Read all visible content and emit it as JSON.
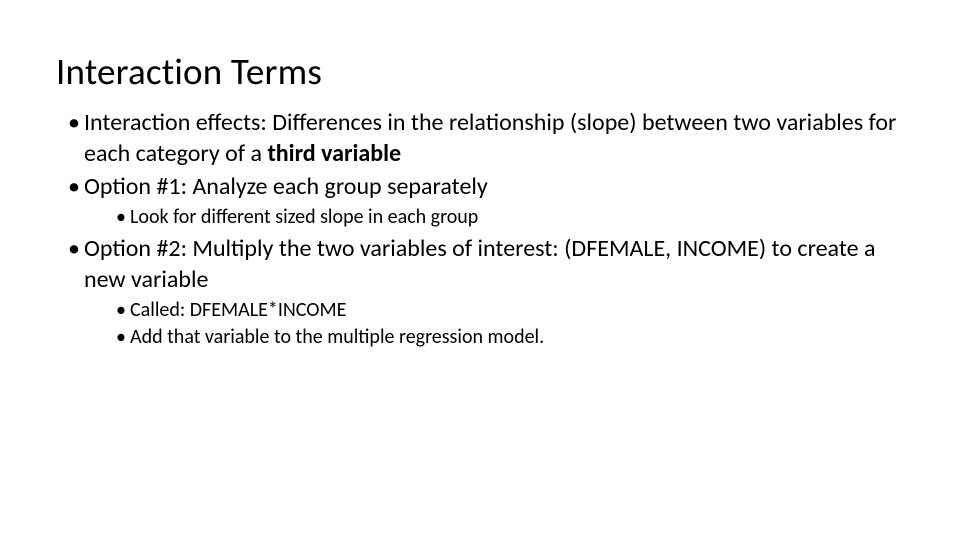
{
  "title": "Interaction Terms",
  "bullets": {
    "b1_prefix": "Interaction effects:  Differences in the relationship (slope) between two variables for each category of a ",
    "b1_bold": "third variable",
    "b2": "Option #1:  Analyze each group separately",
    "b2_sub1": "Look for different sized slope in each group",
    "b3": "Option #2:  Multiply the two variables of interest: (DFEMALE, INCOME) to create a new variable",
    "b3_sub1": "Called:  DFEMALE*INCOME",
    "b3_sub2": "Add that variable to the multiple regression model."
  },
  "style": {
    "background_color": "#ffffff",
    "text_color": "#000000",
    "title_fontsize": 37,
    "body_fontsize": 24,
    "sub_fontsize": 20,
    "font_family": "Calibri"
  }
}
